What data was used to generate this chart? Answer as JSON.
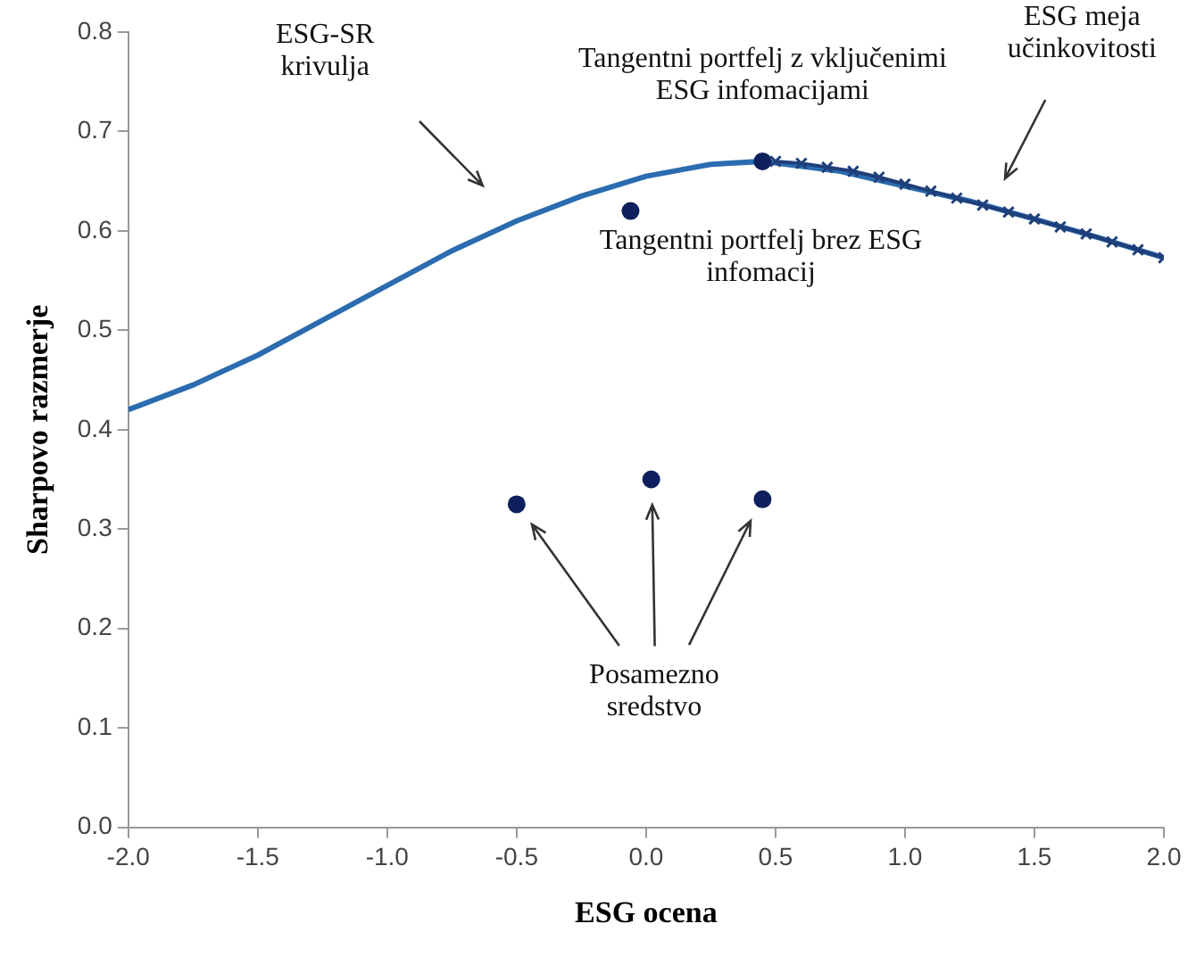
{
  "chart_data": {
    "type": "line",
    "xlabel": "ESG ocena",
    "ylabel": "Sharpovo razmerje",
    "xlim": [
      -2,
      2
    ],
    "xticks": [
      {
        "value": -2,
        "label": "-2.0"
      },
      {
        "value": -1.5,
        "label": "-1.5"
      },
      {
        "value": -1,
        "label": "-1.0"
      },
      {
        "value": -0.5,
        "label": "-0.5"
      },
      {
        "value": 0,
        "label": "0.0"
      },
      {
        "value": 0.5,
        "label": "0.5"
      },
      {
        "value": 1,
        "label": "1.0"
      },
      {
        "value": 1.5,
        "label": "1.5"
      },
      {
        "value": 2,
        "label": "2.0"
      }
    ],
    "ylim": [
      0,
      0.8
    ],
    "yticks": [
      {
        "value": 0,
        "label": "0.0"
      },
      0.1,
      0.2,
      0.3,
      0.4,
      0.5,
      0.6,
      0.7,
      0.8
    ],
    "grid": false,
    "legend": false,
    "series": [
      {
        "type": "line",
        "color": "#2b6cb0",
        "marker": "none",
        "x": [
          -2,
          -1.75,
          -1.5,
          -1.25,
          -1,
          -0.75,
          -0.5,
          -0.25,
          0,
          0.25,
          0.45,
          0.75,
          1,
          1.25,
          1.5,
          1.75,
          2
        ],
        "values": [
          0.42,
          0.445,
          0.475,
          0.51,
          0.545,
          0.58,
          0.61,
          0.635,
          0.655,
          0.667,
          0.67,
          0.66,
          0.645,
          0.63,
          0.612,
          0.593,
          0.573
        ]
      },
      {
        "type": "line",
        "color": "#1f3f7a",
        "marker": "cross",
        "x": [
          0.5,
          0.6,
          0.7,
          0.8,
          0.9,
          1.0,
          1.1,
          1.2,
          1.3,
          1.4,
          1.5,
          1.6,
          1.7,
          1.8,
          1.9,
          2.0
        ],
        "values": [
          0.67,
          0.668,
          0.664,
          0.66,
          0.654,
          0.647,
          0.64,
          0.633,
          0.626,
          0.619,
          0.612,
          0.604,
          0.597,
          0.589,
          0.581,
          0.573
        ]
      },
      {
        "type": "scatter",
        "color": "#0d1f5c",
        "marker": "circle",
        "x": [
          0.45
        ],
        "values": [
          0.67
        ]
      },
      {
        "type": "scatter",
        "color": "#0d1f5c",
        "marker": "circle",
        "x": [
          -0.06
        ],
        "values": [
          0.62
        ]
      },
      {
        "type": "scatter",
        "color": "#0d1f5c",
        "marker": "circle",
        "x": [
          -0.5,
          0.02,
          0.45
        ],
        "values": [
          0.325,
          0.35,
          0.33
        ]
      }
    ],
    "annotations": [
      "ESG-SR\nkrivulja",
      {
        "text": "Tangentni portfelj z vključenimi\nESG infomacijami",
        "x": 0.45,
        "y": 0.67
      },
      {
        "text": "Tangentni portfelj brez ESG\ninfomacij",
        "x": -0.06,
        "y": 0.62
      },
      "ESG meja\nučinkovitosti",
      "Posamezno\nsredstvo"
    ]
  }
}
